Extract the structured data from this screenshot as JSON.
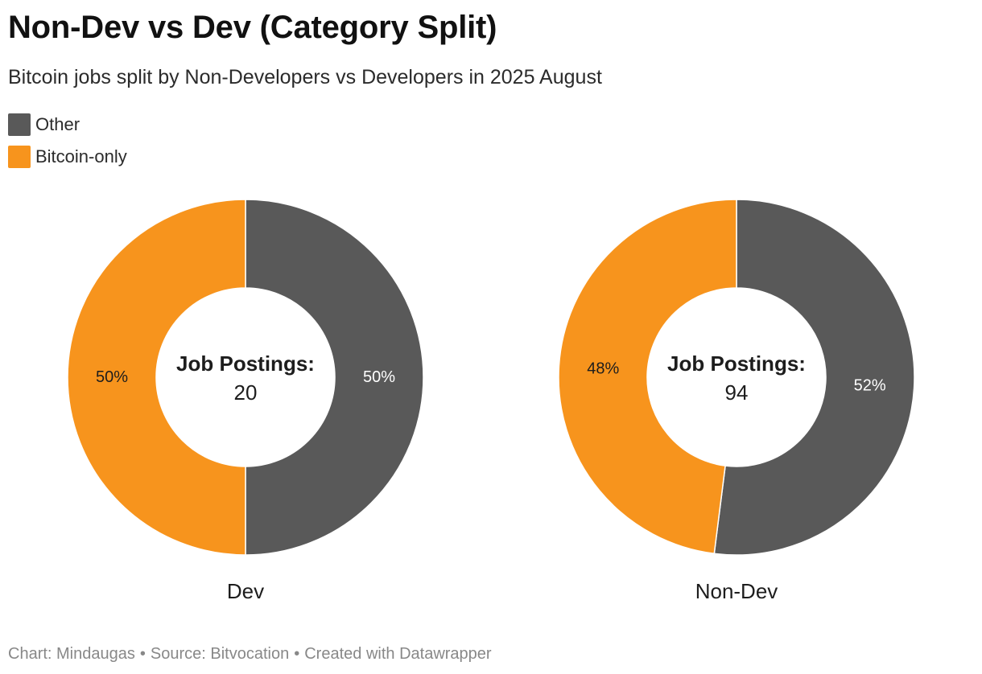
{
  "title": "Non-Dev vs Dev (Category Split)",
  "subtitle": "Bitcoin jobs split by Non-Developers vs Developers in 2025 August",
  "legend": [
    {
      "label": "Other",
      "color": "#595959"
    },
    {
      "label": "Bitcoin-only",
      "color": "#f7941d"
    }
  ],
  "footer": {
    "chart": "Chart: Mindaugas",
    "source": "Source: Bitvocation",
    "created": "Created with Datawrapper",
    "separator": "•"
  },
  "chart_data": [
    {
      "type": "pie",
      "variant": "donut",
      "name": "Dev",
      "center_label": "Job Postings:",
      "center_value": "20",
      "slices": [
        {
          "label": "Other",
          "value": 50,
          "display": "50%",
          "color": "#595959"
        },
        {
          "label": "Bitcoin-only",
          "value": 50,
          "display": "50%",
          "color": "#f7941d"
        }
      ]
    },
    {
      "type": "pie",
      "variant": "donut",
      "name": "Non-Dev",
      "center_label": "Job Postings:",
      "center_value": "94",
      "slices": [
        {
          "label": "Other",
          "value": 52,
          "display": "52%",
          "color": "#595959"
        },
        {
          "label": "Bitcoin-only",
          "value": 48,
          "display": "48%",
          "color": "#f7941d"
        }
      ]
    }
  ]
}
